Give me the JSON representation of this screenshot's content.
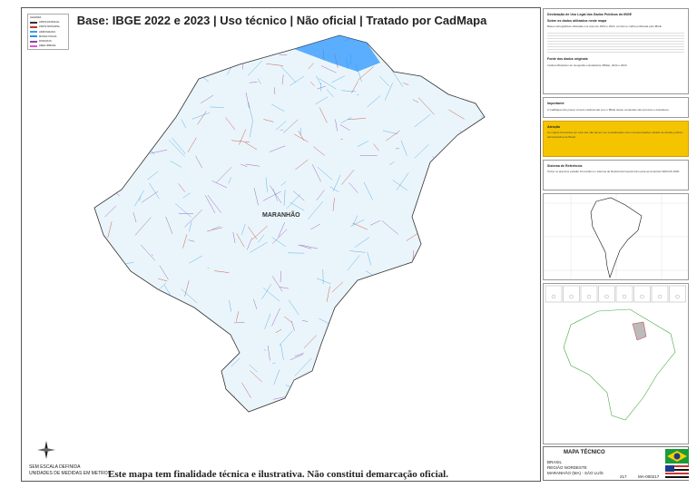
{
  "title": "Base: IBGE 2022 e 2023 | Uso técnico | Não oficial | Tratado por CadMapa",
  "footer": "Este mapa tem finalidade técnica e ilustrativa. Não constitui demarcação oficial.",
  "map_label": "MARANHÃO",
  "scale": {
    "line1": "SEM ESCALA DEFINIDA",
    "line2": "UNIDADES DE MEDIDAS EM METROS"
  },
  "north": "N",
  "legend": {
    "title": "LEGENDA",
    "items": [
      {
        "label": "LIMITE ESTADUAL",
        "color": "#333333"
      },
      {
        "label": "LIMITE MUNICIPAL",
        "color": "#c0392b"
      },
      {
        "label": "HIDROGRAFIA",
        "color": "#3aa0e0"
      },
      {
        "label": "MASSA D'ÁGUA",
        "color": "#1e90ff"
      },
      {
        "label": "RODOVIAS",
        "color": "#8e44ad"
      },
      {
        "label": "ÁREA URBANA",
        "color": "#e056c8"
      }
    ]
  },
  "panel": {
    "declaration_title": "Declaração de Uso Legal dos Dados Públicos do IBGE",
    "about_title": "Sobre os dados utilizados neste mapa",
    "about_text": "Bases cartográficas utilizadas nos anos de 2022 e 2023, conforme malha publicada pelo IBGE.",
    "sources_title": "Fonte dos dados originais",
    "sources_text": "Instituto Brasileiro de Geografia e Estatística (IBGE), 2022 e 2023.",
    "importante_title": "Importante",
    "importante_text": "A CadMapa não possui vínculo institucional com o IBGE. Estes conteúdos são técnicos e ilustrativos.",
    "atencao_title": "Atenção",
    "atencao_text": "As mapas fornecidos por este site não devem ser considerados como representações oficiais de divisão político-administrativa do Brasil.",
    "sistema_title": "Sistema de Referência",
    "sistema_text": "Todos os arquivos estarão fornecidos no sistema de Referência Geocêntrico para as Américas SIRGAS 2000."
  },
  "title_block": {
    "heading": "MAPA TÉCNICO",
    "country": "BRASIL",
    "region": "REGIÃO NORDESTE",
    "state": "MARANHÃO (MA) - SÃO LUÍS",
    "sheet": "217",
    "code": "MA-000217"
  },
  "colors": {
    "attention": "#f5c400",
    "hydro": "#3aa0e0",
    "limits": "#c0392b"
  }
}
